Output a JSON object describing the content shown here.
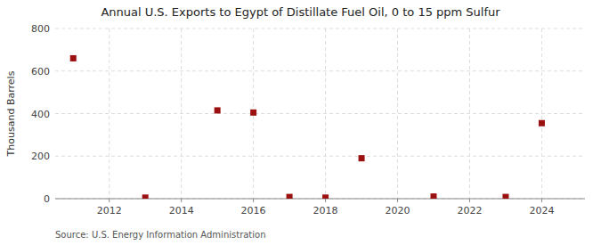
{
  "chart_data": {
    "type": "scatter",
    "title": "Annual U.S. Exports to Egypt of Distillate Fuel Oil, 0 to 15 ppm Sulfur",
    "y_label": "Thousand Barrels",
    "annotations": [
      "Source: U.S. Energy Information Administration"
    ],
    "x": [
      2011,
      2013,
      2015,
      2016,
      2017,
      2018,
      2019,
      2021,
      2023,
      2024
    ],
    "values": [
      660,
      5,
      415,
      405,
      8,
      5,
      190,
      10,
      8,
      355
    ],
    "xlim": [
      2010.5,
      2025.2
    ],
    "ylim": [
      0,
      800
    ],
    "xticks": [
      2012,
      2014,
      2016,
      2018,
      2020,
      2022,
      2024
    ],
    "yticks": [
      0,
      200,
      400,
      600,
      800
    ],
    "color": "#9B1010",
    "marker": "square",
    "grid": true
  }
}
